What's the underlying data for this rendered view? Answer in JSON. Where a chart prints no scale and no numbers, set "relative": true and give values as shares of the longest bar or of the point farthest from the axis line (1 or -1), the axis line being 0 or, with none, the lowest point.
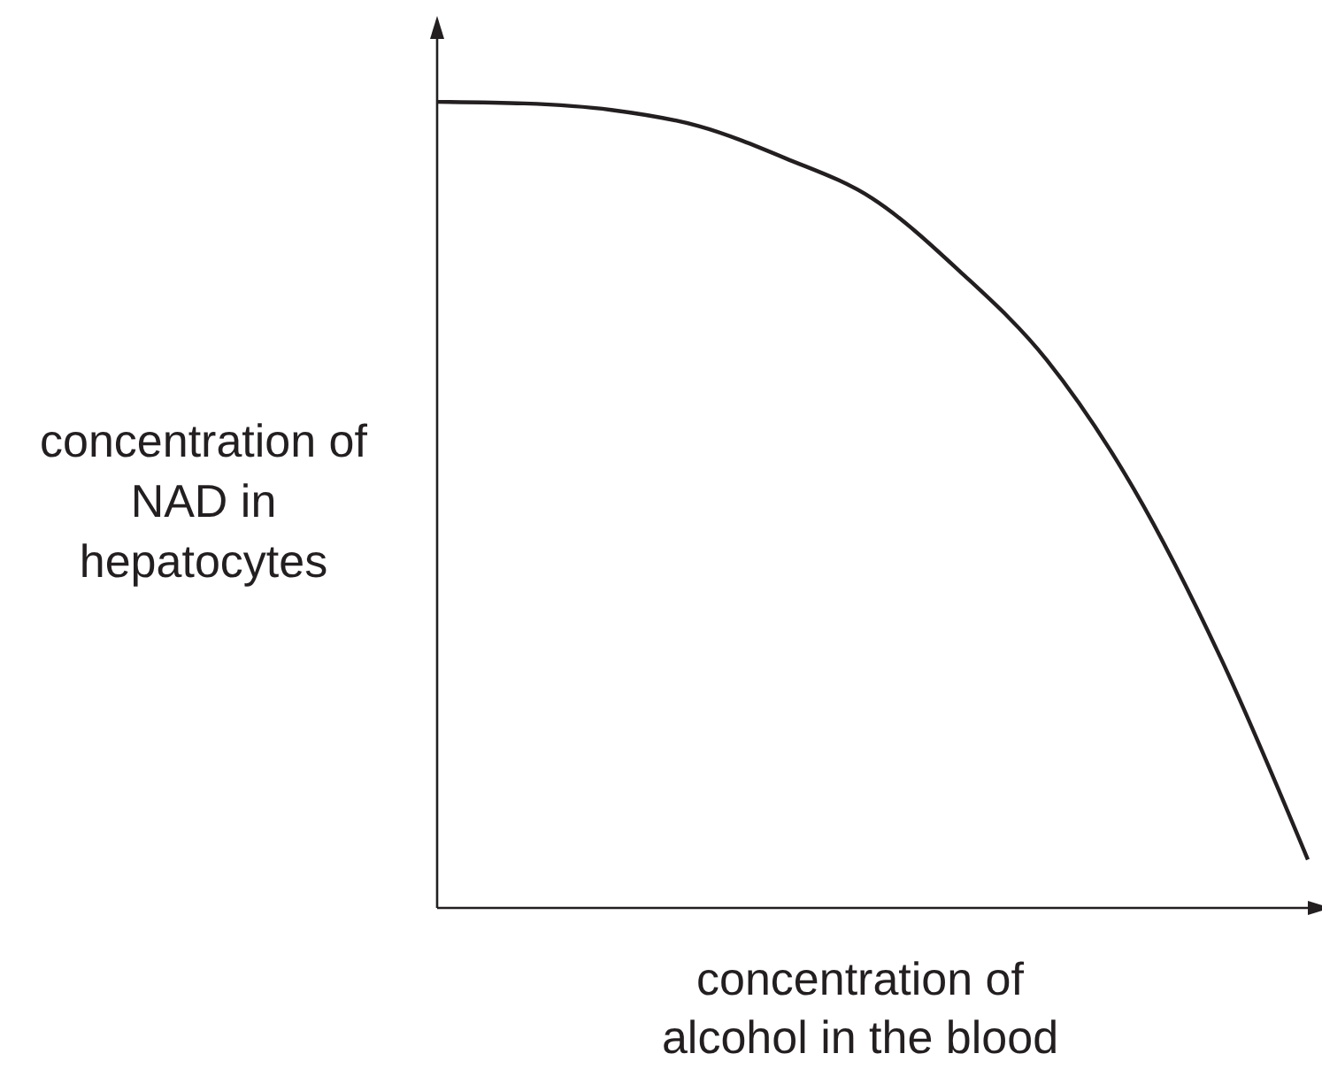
{
  "chart_data": {
    "type": "line",
    "xlabel": "concentration of alcohol in the blood",
    "ylabel": "concentration of NAD in hepatocytes",
    "relative": true,
    "marker": "none",
    "categories": [
      null,
      null,
      null,
      null,
      null,
      null,
      null,
      null,
      null,
      null,
      null
    ],
    "series": [
      {
        "color": "#231f20",
        "values": [
          1.0,
          0.998,
          0.99,
          0.97,
          0.93,
          0.88,
          0.79,
          0.68,
          0.52,
          0.31,
          0.06
        ]
      }
    ]
  }
}
